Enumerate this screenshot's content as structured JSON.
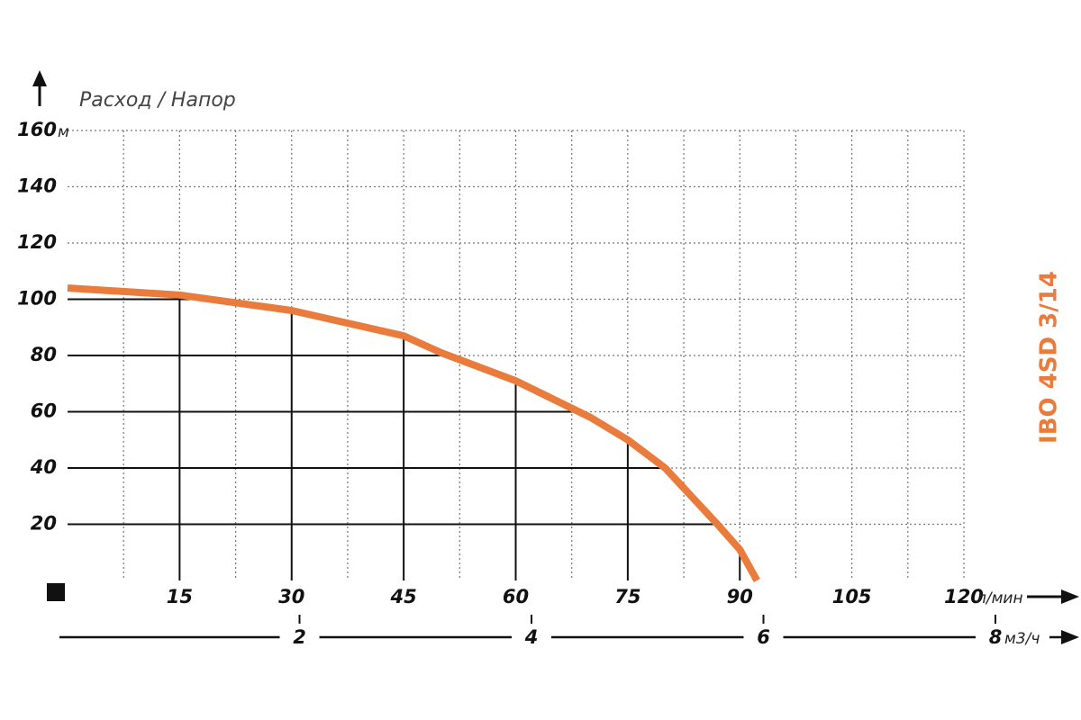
{
  "chart_data": {
    "type": "line",
    "title": "Расход / Напор",
    "x": [
      0,
      15,
      30,
      45,
      50,
      60,
      70,
      75,
      80,
      87,
      90,
      92.3
    ],
    "series": [
      {
        "name": "IBO 4SD 3/14",
        "color": "#e97c3c",
        "values": [
          104,
          101.5,
          96,
          87,
          81,
          71,
          58,
          50,
          40,
          20,
          11,
          0
        ]
      }
    ],
    "xlim": [
      0,
      120
    ],
    "xticks": [
      15,
      30,
      45,
      60,
      75,
      90,
      105,
      120
    ],
    "xminorticks": [
      7.5,
      22.5,
      37.5,
      52.5,
      67.5,
      82.5,
      97.5,
      112.5
    ],
    "xunit": "л/мин",
    "ylim": [
      0,
      160
    ],
    "yticks": [
      20,
      40,
      60,
      80,
      100,
      120,
      140,
      160
    ],
    "yunit": "м",
    "x2lim": [
      0,
      8
    ],
    "x2ticks": [
      2,
      4,
      6,
      8
    ],
    "x2unit": "м3/ч",
    "grid": true
  }
}
